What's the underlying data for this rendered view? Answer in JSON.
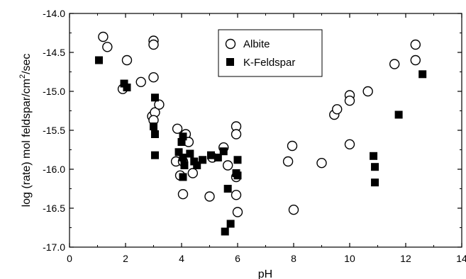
{
  "chart_data": {
    "type": "scatter",
    "xlabel": "pH",
    "ylabel": "log (rate) mol feldspar/cm",
    "ylabel_sup": "2",
    "ylabel_tail": "/sec",
    "xlim": [
      0,
      14
    ],
    "ylim": [
      -17.0,
      -14.0
    ],
    "x_ticks": [
      0,
      2,
      4,
      6,
      8,
      10,
      12,
      14
    ],
    "y_ticks": [
      -17.0,
      -16.5,
      -16.0,
      -15.5,
      -15.0,
      -14.5,
      -14.0
    ],
    "x_tick_labels": [
      "0",
      "2",
      "4",
      "6",
      "8",
      "10",
      "12",
      "14"
    ],
    "y_tick_labels": [
      "-17.0",
      "-16.5",
      "-16.0",
      "-15.5",
      "-15.0",
      "-14.5",
      "-14.0"
    ],
    "grid": false,
    "legend_position": "top-center",
    "series": [
      {
        "name": "Albite",
        "marker": "open-circle",
        "points": [
          [
            1.2,
            -14.3
          ],
          [
            1.35,
            -14.43
          ],
          [
            1.9,
            -14.97
          ],
          [
            2.05,
            -14.6
          ],
          [
            2.55,
            -14.88
          ],
          [
            3.0,
            -14.35
          ],
          [
            3.0,
            -14.4
          ],
          [
            3.0,
            -14.82
          ],
          [
            2.95,
            -15.32
          ],
          [
            3.05,
            -15.27
          ],
          [
            3.2,
            -15.17
          ],
          [
            3.0,
            -15.37
          ],
          [
            3.85,
            -15.48
          ],
          [
            3.8,
            -15.9
          ],
          [
            3.95,
            -16.08
          ],
          [
            4.05,
            -15.9
          ],
          [
            4.15,
            -15.55
          ],
          [
            4.05,
            -16.32
          ],
          [
            4.4,
            -16.05
          ],
          [
            4.25,
            -15.65
          ],
          [
            5.0,
            -16.35
          ],
          [
            5.1,
            -15.85
          ],
          [
            5.5,
            -15.72
          ],
          [
            5.65,
            -15.95
          ],
          [
            5.95,
            -15.45
          ],
          [
            5.95,
            -15.55
          ],
          [
            5.95,
            -16.1
          ],
          [
            5.95,
            -16.33
          ],
          [
            6.0,
            -16.55
          ],
          [
            7.8,
            -15.9
          ],
          [
            7.95,
            -15.7
          ],
          [
            8.0,
            -16.52
          ],
          [
            9.0,
            -15.92
          ],
          [
            9.45,
            -15.3
          ],
          [
            9.55,
            -15.23
          ],
          [
            10.0,
            -15.05
          ],
          [
            10.0,
            -15.12
          ],
          [
            10.0,
            -15.68
          ],
          [
            10.65,
            -15.0
          ],
          [
            11.6,
            -14.65
          ],
          [
            12.35,
            -14.4
          ],
          [
            12.35,
            -14.6
          ]
        ]
      },
      {
        "name": "K-Feldspar",
        "marker": "filled-square",
        "points": [
          [
            1.05,
            -14.6
          ],
          [
            1.95,
            -14.9
          ],
          [
            2.05,
            -14.95
          ],
          [
            3.05,
            -15.08
          ],
          [
            3.0,
            -15.45
          ],
          [
            3.05,
            -15.55
          ],
          [
            3.05,
            -15.82
          ],
          [
            3.9,
            -15.78
          ],
          [
            4.0,
            -15.65
          ],
          [
            4.05,
            -15.58
          ],
          [
            4.05,
            -15.85
          ],
          [
            4.1,
            -15.95
          ],
          [
            4.05,
            -16.1
          ],
          [
            4.3,
            -15.8
          ],
          [
            4.45,
            -15.9
          ],
          [
            4.55,
            -15.95
          ],
          [
            4.75,
            -15.88
          ],
          [
            5.05,
            -15.82
          ],
          [
            5.3,
            -15.85
          ],
          [
            5.5,
            -15.77
          ],
          [
            5.55,
            -16.8
          ],
          [
            5.65,
            -16.25
          ],
          [
            5.75,
            -16.7
          ],
          [
            5.95,
            -16.05
          ],
          [
            6.0,
            -15.88
          ],
          [
            6.0,
            -16.08
          ],
          [
            10.85,
            -15.83
          ],
          [
            10.9,
            -15.97
          ],
          [
            10.9,
            -16.17
          ],
          [
            11.75,
            -15.3
          ],
          [
            12.6,
            -14.78
          ]
        ]
      }
    ]
  }
}
